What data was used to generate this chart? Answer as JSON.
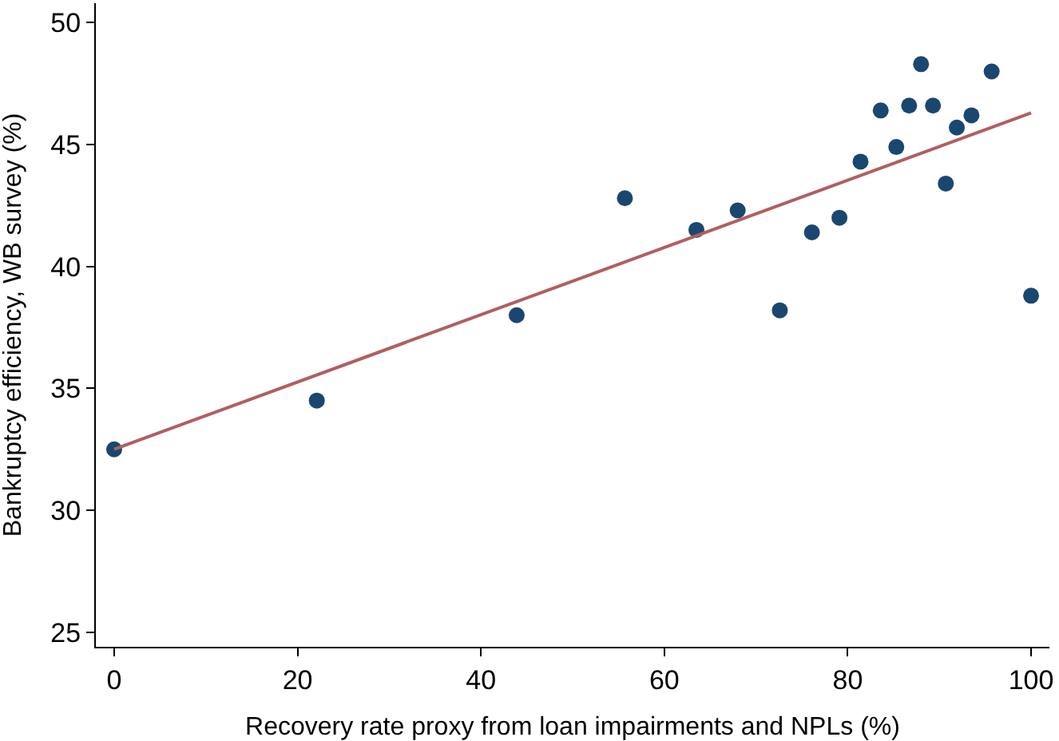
{
  "chart_data": {
    "type": "scatter",
    "xlabel": "Recovery rate proxy from loan impairments and NPLs (%)",
    "ylabel": "Bankruptcy efficiency, WB survey (%)",
    "xlim": [
      -2,
      102
    ],
    "xticks": [
      0,
      20,
      40,
      60,
      80,
      100
    ],
    "ylim": [
      24.4,
      50.8
    ],
    "yticks": [
      25,
      30,
      35,
      40,
      45,
      50
    ],
    "legend": false,
    "series": [
      {
        "marker": "circle",
        "color": "#1a476f",
        "x": [
          0,
          22.1,
          43.9,
          55.7,
          63.5,
          68.0,
          72.6,
          76.1,
          79.1,
          81.4,
          83.6,
          85.3,
          86.7,
          88.0,
          89.3,
          90.7,
          91.9,
          93.5,
          95.7,
          100
        ],
        "values": [
          32.5,
          34.5,
          38.0,
          42.8,
          41.5,
          42.3,
          38.2,
          41.4,
          42.0,
          44.3,
          46.4,
          44.9,
          46.6,
          48.3,
          46.6,
          43.4,
          45.7,
          46.2,
          48.0,
          38.8
        ]
      },
      {
        "type": "line",
        "color": "#b15f5f",
        "line_style": "solid",
        "x": [
          0,
          100
        ],
        "values": [
          32.5,
          46.3
        ]
      }
    ]
  }
}
